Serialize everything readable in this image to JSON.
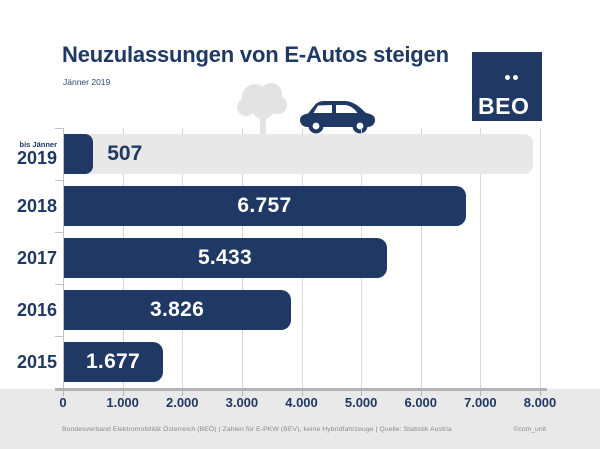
{
  "header": {
    "title": "Neuzulassungen von E-Autos steigen",
    "subtitle": "Jänner 2019"
  },
  "logo": {
    "text": "BEO"
  },
  "icons": {
    "tree": "tree-icon",
    "car": "electric-car-icon",
    "logo_dots": "umlaut-dots-icon"
  },
  "colors": {
    "navy": "#1F3864",
    "track_gray": "#E8E8E8",
    "strip_gray": "#E9E9E9",
    "grid_gray": "#D8D8D8",
    "axis_gray": "#B3B3B3",
    "footer_gray": "#8A8A8A",
    "decor_gray": "#E3E3E3"
  },
  "chart_data": {
    "type": "bar",
    "orientation": "horizontal",
    "title": "Neuzulassungen von E-Autos steigen",
    "categories": [
      "2019",
      "2018",
      "2017",
      "2016",
      "2015"
    ],
    "category_prefixes": [
      "bis Jänner",
      "",
      "",
      "",
      ""
    ],
    "values": [
      507,
      6757,
      5433,
      3826,
      1677
    ],
    "value_labels": [
      "507",
      "6.757",
      "5.433",
      "3.826",
      "1.677"
    ],
    "value_label_outside": [
      true,
      false,
      false,
      false,
      false
    ],
    "xlim": [
      0,
      8000
    ],
    "x_tick_values": [
      0,
      1000,
      2000,
      3000,
      4000,
      5000,
      6000,
      7000,
      8000
    ],
    "x_tick_labels": [
      "0",
      "1.000",
      "2.000",
      "3.000",
      "4.000",
      "5.000",
      "6.000",
      "7.000",
      "8.000"
    ],
    "grid": "vertical",
    "first_row_background_track": true,
    "legend": "none"
  },
  "footer": {
    "source": "Bundesverband Elektromobilität Österreich (BEÖ) | Zahlen für E-PKW (BEV), keine Hybridfahrzeuge | Quelle: Statistik Austria",
    "credit": "©com_unit"
  }
}
